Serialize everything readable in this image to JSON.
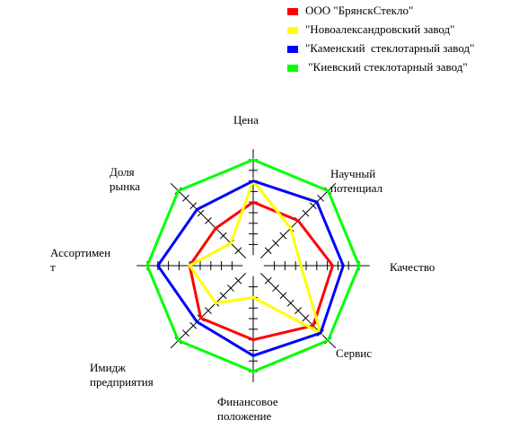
{
  "chart_data": {
    "type": "radar",
    "axes": [
      "Цена",
      "Научный потенциал",
      "Качество",
      "Сервис",
      "Финансовое положение",
      "Имидж предприятия",
      "Ассортимент",
      "Доля рынка"
    ],
    "axis_label_lines": [
      [
        "Цена"
      ],
      [
        "Научный",
        "потенциал"
      ],
      [
        "Качество"
      ],
      [
        "Сервис"
      ],
      [
        "Финансовое",
        "положение"
      ],
      [
        "Имидж",
        "предприятия"
      ],
      [
        "Ассортимен",
        "т"
      ],
      [
        "Доля",
        "рынка"
      ]
    ],
    "scale_max": 10,
    "series": [
      {
        "name": "ООО \"БрянскСтекло\"",
        "color": "#ff0000",
        "values": [
          6,
          6,
          7.5,
          8,
          7,
          7,
          6,
          5
        ]
      },
      {
        "name": "\"Новоалександровский завод\"",
        "color": "#ffff00",
        "values": [
          8,
          5,
          4.5,
          9,
          3,
          5,
          6,
          3
        ]
      },
      {
        "name": "\"Каменский  стеклотарный завод\"",
        "color": "#0000ff",
        "values": [
          8,
          8.5,
          8.5,
          9,
          8.5,
          7.5,
          9,
          7.5
        ]
      },
      {
        "name": "\"Киевский стеклотарный завод\"",
        "color": "#00ff00",
        "values": [
          10,
          10,
          10,
          10,
          10,
          10,
          10,
          10
        ]
      }
    ]
  },
  "legend": [
    {
      "label": "ООО \"БрянскСтекло\"",
      "color": "#ff0000"
    },
    {
      "label": "\"Новоалександровский завод\"",
      "color": "#ffff00"
    },
    {
      "label": "\"Каменский  стеклотарный завод\"",
      "color": "#0000ff"
    },
    {
      "label": " \"Киевский стеклотарный завод\"",
      "color": "#00ff00"
    }
  ]
}
